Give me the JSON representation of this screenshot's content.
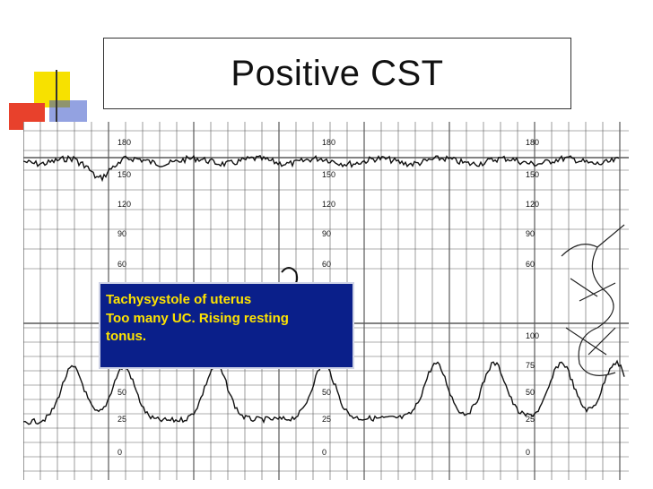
{
  "slide": {
    "title": "Positive CST",
    "note_lines": [
      "Tachysystole of uterus",
      "Too many UC. Rising resting",
      "tonus."
    ]
  },
  "strip": {
    "fhr_scale_labels": [
      "180",
      "150",
      "120",
      "90",
      "60"
    ],
    "uc_scale_labels": [
      "100",
      "75",
      "50",
      "25",
      "0"
    ]
  },
  "colors": {
    "note_background": "#0a1f8a",
    "note_text": "#ffe400",
    "deco_yellow": "#f7e100",
    "deco_red": "#e8412c",
    "deco_blue": "#3b56c9"
  }
}
